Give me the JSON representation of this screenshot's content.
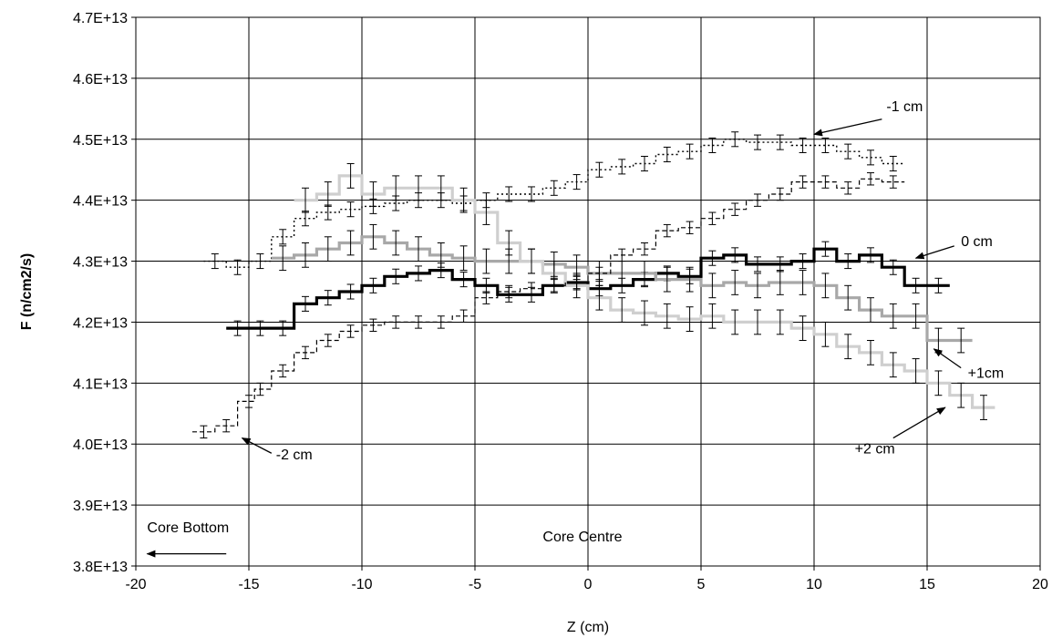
{
  "chart_data": {
    "type": "line",
    "xlabel": "Z (cm)",
    "ylabel": "F (n/cm2/s)",
    "xlim": [
      -20,
      20
    ],
    "ylim": [
      38000000000000.0,
      47000000000000.0
    ],
    "x_ticks": [
      -20,
      -15,
      -10,
      -5,
      0,
      5,
      10,
      15,
      20
    ],
    "x_tick_labels": [
      "-20",
      "-15",
      "-10",
      "-5",
      "0",
      "5",
      "10",
      "15",
      "20"
    ],
    "y_ticks": [
      38000000000000.0,
      39000000000000.0,
      40000000000000.0,
      41000000000000.0,
      42000000000000.0,
      43000000000000.0,
      44000000000000.0,
      45000000000000.0,
      46000000000000.0,
      47000000000000.0
    ],
    "y_tick_labels": [
      "3.8E+13",
      "3.9E+13",
      "4.0E+13",
      "4.1E+13",
      "4.2E+13",
      "4.3E+13",
      "4.4E+13",
      "4.5E+13",
      "4.6E+13",
      "4.7E+13"
    ],
    "grid": true,
    "legend": "none",
    "series": [
      {
        "name": "-1 cm",
        "style": "dotted",
        "color": "#000000",
        "x": [
          -16.5,
          -15.5,
          -14.5,
          -13.5,
          -12.5,
          -11.5,
          -10.5,
          -9.5,
          -8.5,
          -7.5,
          -6.5,
          -5.5,
          -4.5,
          -3.5,
          -2.5,
          -1.5,
          -0.5,
          0.5,
          1.5,
          2.5,
          3.5,
          4.5,
          5.5,
          6.5,
          7.5,
          8.5,
          9.5,
          10.5,
          11.5,
          12.5,
          13.5
        ],
        "y": [
          43000000000000.0,
          42900000000000.0,
          43000000000000.0,
          43400000000000.0,
          43700000000000.0,
          43800000000000.0,
          43850000000000.0,
          43900000000000.0,
          43950000000000.0,
          44000000000000.0,
          44000000000000.0,
          43950000000000.0,
          44000000000000.0,
          44100000000000.0,
          44100000000000.0,
          44200000000000.0,
          44300000000000.0,
          44500000000000.0,
          44550000000000.0,
          44600000000000.0,
          44750000000000.0,
          44800000000000.0,
          44900000000000.0,
          45000000000000.0,
          44950000000000.0,
          44950000000000.0,
          44900000000000.0,
          44900000000000.0,
          44800000000000.0,
          44700000000000.0,
          44600000000000.0
        ],
        "err": [
          120000000000.0,
          120000000000.0,
          120000000000.0,
          120000000000.0,
          120000000000.0,
          120000000000.0,
          120000000000.0,
          120000000000.0,
          120000000000.0,
          120000000000.0,
          120000000000.0,
          120000000000.0,
          120000000000.0,
          120000000000.0,
          120000000000.0,
          120000000000.0,
          120000000000.0,
          120000000000.0,
          120000000000.0,
          120000000000.0,
          120000000000.0,
          120000000000.0,
          120000000000.0,
          120000000000.0,
          120000000000.0,
          120000000000.0,
          120000000000.0,
          120000000000.0,
          120000000000.0,
          120000000000.0,
          120000000000.0
        ]
      },
      {
        "name": "0 cm",
        "style": "thick",
        "color": "#000000",
        "x": [
          -15.5,
          -14.5,
          -13.5,
          -12.5,
          -11.5,
          -10.5,
          -9.5,
          -8.5,
          -7.5,
          -6.5,
          -5.5,
          -4.5,
          -3.5,
          -2.5,
          -1.5,
          -0.5,
          0.5,
          1.5,
          2.5,
          3.5,
          4.5,
          5.5,
          6.5,
          7.5,
          8.5,
          9.5,
          10.5,
          11.5,
          12.5,
          13.5,
          14.5,
          15.5
        ],
        "y": [
          41900000000000.0,
          41900000000000.0,
          41900000000000.0,
          42300000000000.0,
          42400000000000.0,
          42500000000000.0,
          42600000000000.0,
          42750000000000.0,
          42800000000000.0,
          42850000000000.0,
          42700000000000.0,
          42600000000000.0,
          42450000000000.0,
          42450000000000.0,
          42600000000000.0,
          42650000000000.0,
          42550000000000.0,
          42600000000000.0,
          42700000000000.0,
          42800000000000.0,
          42750000000000.0,
          43050000000000.0,
          43100000000000.0,
          42950000000000.0,
          42950000000000.0,
          43000000000000.0,
          43200000000000.0,
          43000000000000.0,
          43100000000000.0,
          42900000000000.0,
          42600000000000.0,
          42600000000000.0
        ],
        "err": [
          120000000000.0,
          120000000000.0,
          120000000000.0,
          120000000000.0,
          120000000000.0,
          120000000000.0,
          120000000000.0,
          120000000000.0,
          120000000000.0,
          120000000000.0,
          120000000000.0,
          120000000000.0,
          120000000000.0,
          120000000000.0,
          120000000000.0,
          120000000000.0,
          120000000000.0,
          120000000000.0,
          120000000000.0,
          120000000000.0,
          120000000000.0,
          120000000000.0,
          120000000000.0,
          120000000000.0,
          120000000000.0,
          120000000000.0,
          120000000000.0,
          120000000000.0,
          120000000000.0,
          120000000000.0,
          120000000000.0,
          120000000000.0
        ]
      },
      {
        "name": "+1cm",
        "style": "solid-gray",
        "color": "#a8a8a8",
        "x": [
          -13.5,
          -12.5,
          -11.5,
          -10.5,
          -9.5,
          -8.5,
          -7.5,
          -6.5,
          -5.5,
          -4.5,
          -3.5,
          -2.5,
          -1.5,
          -0.5,
          0.5,
          1.5,
          2.5,
          3.5,
          4.5,
          5.5,
          6.5,
          7.5,
          8.5,
          9.5,
          10.5,
          11.5,
          12.5,
          13.5,
          14.5,
          15.5,
          16.5
        ],
        "y": [
          43050000000000.0,
          43100000000000.0,
          43200000000000.0,
          43300000000000.0,
          43400000000000.0,
          43300000000000.0,
          43200000000000.0,
          43100000000000.0,
          43050000000000.0,
          43000000000000.0,
          43000000000000.0,
          43000000000000.0,
          42950000000000.0,
          42900000000000.0,
          42800000000000.0,
          42800000000000.0,
          42800000000000.0,
          42700000000000.0,
          42700000000000.0,
          42600000000000.0,
          42650000000000.0,
          42600000000000.0,
          42650000000000.0,
          42650000000000.0,
          42600000000000.0,
          42400000000000.0,
          42200000000000.0,
          42100000000000.0,
          42100000000000.0,
          41700000000000.0,
          41700000000000.0
        ],
        "err": [
          200000000000.0,
          200000000000.0,
          200000000000.0,
          200000000000.0,
          200000000000.0,
          200000000000.0,
          200000000000.0,
          200000000000.0,
          200000000000.0,
          200000000000.0,
          200000000000.0,
          200000000000.0,
          200000000000.0,
          200000000000.0,
          200000000000.0,
          200000000000.0,
          200000000000.0,
          200000000000.0,
          200000000000.0,
          200000000000.0,
          200000000000.0,
          200000000000.0,
          200000000000.0,
          200000000000.0,
          200000000000.0,
          200000000000.0,
          200000000000.0,
          200000000000.0,
          200000000000.0,
          200000000000.0,
          200000000000.0
        ]
      },
      {
        "name": "+2 cm",
        "style": "solid-lightgray",
        "color": "#cfcfcf",
        "x": [
          -12.5,
          -11.5,
          -10.5,
          -9.5,
          -8.5,
          -7.5,
          -6.5,
          -5.5,
          -4.5,
          -3.5,
          -2.5,
          -1.5,
          -0.5,
          0.5,
          1.5,
          2.5,
          3.5,
          4.5,
          5.5,
          6.5,
          7.5,
          8.5,
          9.5,
          10.5,
          11.5,
          12.5,
          13.5,
          14.5,
          15.5,
          16.5,
          17.5
        ],
        "y": [
          44000000000000.0,
          44100000000000.0,
          44400000000000.0,
          44100000000000.0,
          44200000000000.0,
          44200000000000.0,
          44200000000000.0,
          44000000000000.0,
          43800000000000.0,
          43300000000000.0,
          43000000000000.0,
          42800000000000.0,
          42600000000000.0,
          42400000000000.0,
          42200000000000.0,
          42150000000000.0,
          42100000000000.0,
          42050000000000.0,
          42100000000000.0,
          42000000000000.0,
          42000000000000.0,
          42000000000000.0,
          41900000000000.0,
          41800000000000.0,
          41600000000000.0,
          41500000000000.0,
          41300000000000.0,
          41200000000000.0,
          41000000000000.0,
          40800000000000.0,
          40600000000000.0
        ],
        "err": [
          200000000000.0,
          200000000000.0,
          200000000000.0,
          200000000000.0,
          200000000000.0,
          200000000000.0,
          200000000000.0,
          200000000000.0,
          200000000000.0,
          200000000000.0,
          200000000000.0,
          200000000000.0,
          200000000000.0,
          200000000000.0,
          200000000000.0,
          200000000000.0,
          200000000000.0,
          200000000000.0,
          200000000000.0,
          200000000000.0,
          200000000000.0,
          200000000000.0,
          200000000000.0,
          200000000000.0,
          200000000000.0,
          200000000000.0,
          200000000000.0,
          200000000000.0,
          200000000000.0,
          200000000000.0,
          200000000000.0
        ]
      },
      {
        "name": "-2 cm",
        "style": "dashed",
        "color": "#000000",
        "x": [
          -17,
          -16,
          -15,
          -14.5,
          -13.5,
          -12.5,
          -11.5,
          -10.5,
          -9.5,
          -8.5,
          -7.5,
          -6.5,
          -5.5,
          -4.5,
          -3.5,
          -2.5,
          -1.5,
          -0.5,
          0.5,
          1.5,
          2.5,
          3.5,
          4.5,
          5.5,
          6.5,
          7.5,
          8.5,
          9.5,
          10.5,
          11.5,
          12.5,
          13.5
        ],
        "y": [
          40200000000000.0,
          40300000000000.0,
          40700000000000.0,
          40900000000000.0,
          41200000000000.0,
          41500000000000.0,
          41700000000000.0,
          41850000000000.0,
          41950000000000.0,
          42000000000000.0,
          42000000000000.0,
          42000000000000.0,
          42100000000000.0,
          42400000000000.0,
          42500000000000.0,
          42550000000000.0,
          42600000000000.0,
          42650000000000.0,
          42800000000000.0,
          43100000000000.0,
          43200000000000.0,
          43500000000000.0,
          43550000000000.0,
          43700000000000.0,
          43850000000000.0,
          44000000000000.0,
          44100000000000.0,
          44300000000000.0,
          44300000000000.0,
          44200000000000.0,
          44350000000000.0,
          44300000000000.0
        ],
        "err": [
          100000000000.0,
          100000000000.0,
          100000000000.0,
          100000000000.0,
          100000000000.0,
          100000000000.0,
          100000000000.0,
          100000000000.0,
          100000000000.0,
          100000000000.0,
          100000000000.0,
          100000000000.0,
          100000000000.0,
          100000000000.0,
          100000000000.0,
          100000000000.0,
          100000000000.0,
          100000000000.0,
          100000000000.0,
          100000000000.0,
          100000000000.0,
          100000000000.0,
          100000000000.0,
          100000000000.0,
          100000000000.0,
          100000000000.0,
          100000000000.0,
          100000000000.0,
          100000000000.0,
          100000000000.0,
          100000000000.0,
          100000000000.0
        ]
      }
    ],
    "annotations": [
      {
        "text": "-1 cm",
        "x": 13.2,
        "y": 45460000000000.0,
        "arrow_from": [
          13.0,
          45330000000000.0
        ],
        "arrow_to": [
          10.0,
          45080000000000.0
        ]
      },
      {
        "text": "0 cm",
        "x": 16.5,
        "y": 43250000000000.0,
        "arrow_from": [
          16.2,
          43250000000000.0
        ],
        "arrow_to": [
          14.5,
          43050000000000.0
        ]
      },
      {
        "text": "+1cm",
        "x": 16.8,
        "y": 41090000000000.0,
        "arrow_from": [
          16.5,
          41250000000000.0
        ],
        "arrow_to": [
          15.3,
          41560000000000.0
        ]
      },
      {
        "text": "+2 cm",
        "x": 11.8,
        "y": 39850000000000.0,
        "arrow_from": [
          13.5,
          40100000000000.0
        ],
        "arrow_to": [
          15.8,
          40600000000000.0
        ]
      },
      {
        "text": "-2 cm",
        "x": -13.8,
        "y": 39750000000000.0,
        "arrow_from": [
          -14.0,
          39850000000000.0
        ],
        "arrow_to": [
          -15.3,
          40100000000000.0
        ]
      },
      {
        "text": "Core Bottom",
        "x": -19.5,
        "y": 38550000000000.0,
        "arrow_from": [
          -16.0,
          38200000000000.0
        ],
        "arrow_to": [
          -19.5,
          38200000000000.0
        ]
      },
      {
        "text": "Core Centre",
        "x": -2.0,
        "y": 38400000000000.0
      }
    ]
  }
}
